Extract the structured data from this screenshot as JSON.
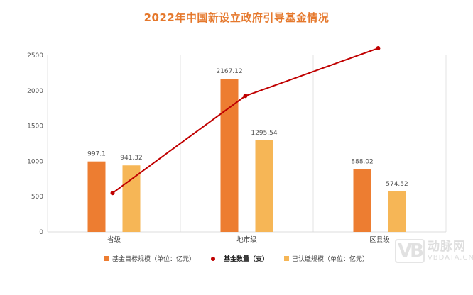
{
  "chart_data": {
    "type": "bar",
    "title": "2022年中国新设立政府引导基金情况",
    "categories": [
      "省级",
      "地市级",
      "区县级"
    ],
    "ylim": [
      0,
      2500
    ],
    "yticks": [
      "0",
      "500",
      "1000",
      "1500",
      "2000",
      "2500"
    ],
    "ytick_values": [
      0,
      500,
      1000,
      1500,
      2000,
      2500
    ],
    "grid": false,
    "legend_position": "bottom",
    "series": [
      {
        "name": "基金目标规模（单位：亿元）",
        "type": "bar",
        "color": "#ed7d31",
        "values": [
          997.1,
          2167.12,
          888.02
        ],
        "labels": [
          "997.1",
          "2167.12",
          "888.02"
        ]
      },
      {
        "name": "基金数量（支）",
        "type": "line",
        "axis": "secondary-hidden",
        "color": "#c00000",
        "values": [
          22,
          77,
          104
        ]
      },
      {
        "name": "已认缴规模（单位：亿元）",
        "type": "bar",
        "color": "#f6b656",
        "values": [
          941.32,
          1295.54,
          574.52
        ],
        "labels": [
          "941.32",
          "1295.54",
          "574.52"
        ]
      }
    ],
    "secondary_ylim": [
      0,
      100
    ]
  },
  "watermark": {
    "cn": "动脉网",
    "en": "VBDATA.CN",
    "logo": "VB"
  }
}
